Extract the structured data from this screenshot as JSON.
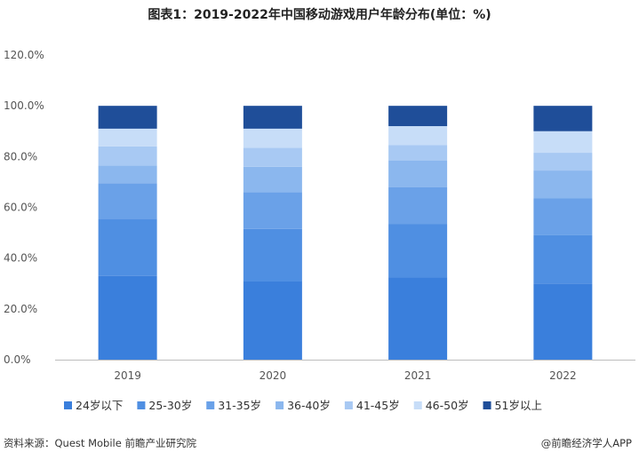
{
  "title": "图表1：2019-2022年中国移动游戏用户年龄分布(单位：%)",
  "source": "资料来源：Quest Mobile 前瞻产业研究院",
  "brand": "@前瞻经济学人APP",
  "chart_data": {
    "type": "bar",
    "stacked": true,
    "title": "图表1：2019-2022年中国移动游戏用户年龄分布(单位：%)",
    "categories": [
      "2019",
      "2020",
      "2021",
      "2022"
    ],
    "yticks": [
      "0.0%",
      "20.0%",
      "40.0%",
      "60.0%",
      "80.0%",
      "100.0%",
      "120.0%"
    ],
    "ylim": [
      0,
      120
    ],
    "legend_position": "bottom",
    "series": [
      {
        "name": "24岁以下",
        "color": "#3a7fdc",
        "values": [
          33.0,
          31.0,
          32.5,
          30.0
        ]
      },
      {
        "name": "25-30岁",
        "color": "#4f8fe2",
        "values": [
          22.5,
          20.5,
          21.0,
          19.0
        ]
      },
      {
        "name": "31-35岁",
        "color": "#6aa1e8",
        "values": [
          14.0,
          14.5,
          14.5,
          14.5
        ]
      },
      {
        "name": "36-40岁",
        "color": "#8bb7ee",
        "values": [
          7.0,
          10.0,
          10.5,
          11.0
        ]
      },
      {
        "name": "41-45岁",
        "color": "#a8c9f3",
        "values": [
          7.5,
          7.5,
          6.0,
          7.0
        ]
      },
      {
        "name": "46-50岁",
        "color": "#c7ddf8",
        "values": [
          7.0,
          7.5,
          7.5,
          8.5
        ]
      },
      {
        "name": "51岁以上",
        "color": "#1f4e99",
        "values": [
          9.0,
          9.0,
          8.0,
          10.0
        ]
      }
    ]
  }
}
